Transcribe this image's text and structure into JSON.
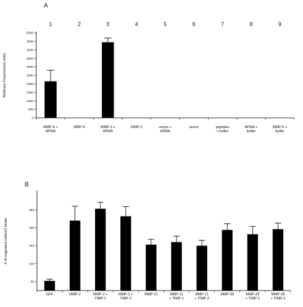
{
  "chart_data": [
    {
      "type": "bar",
      "panel_label": "A",
      "column_numbers": [
        "1",
        "2",
        "3",
        "4",
        "5",
        "6",
        "7",
        "8",
        "9"
      ],
      "categories": [
        [
          "MMP-9 +",
          "APMA"
        ],
        [
          "MMP-9"
        ],
        [
          "MMP-2 +",
          "APMA"
        ],
        [
          "MMP-2"
        ],
        [
          "vector +",
          "APMA"
        ],
        [
          "vector"
        ],
        [
          "peptides",
          "+ buffer"
        ],
        [
          "APMA +",
          "buffer"
        ],
        [
          "MMP-9 +",
          "buffer"
        ]
      ],
      "values": [
        2150,
        0,
        4450,
        0,
        0,
        0,
        0,
        0,
        0
      ],
      "errors": [
        650,
        0,
        250,
        0,
        0,
        0,
        0,
        0,
        0
      ],
      "ylabel": "Arbitrary Fluorescent units",
      "ylim": [
        0,
        5000
      ],
      "yticks": [
        0,
        500,
        1000,
        1500,
        2000,
        2500,
        3000,
        3500,
        4000,
        4500,
        5000
      ]
    },
    {
      "type": "bar",
      "panel_label": "B",
      "categories": [
        [
          "GFP"
        ],
        [
          "MMP-2"
        ],
        [
          "MMP-2 +",
          "TIMP-1"
        ],
        [
          "MMP-2 +",
          "TIMP-2"
        ],
        [
          "MMP-11"
        ],
        [
          "MMP-11",
          "+ TIMP-1"
        ],
        [
          "MMP-11",
          "+ TIMP-2"
        ],
        [
          "MMP-28"
        ],
        [
          "MMP-28",
          "+ TIMP-1"
        ],
        [
          "MMP-28",
          "+ TIMP-2"
        ]
      ],
      "values": [
        52,
        220,
        253,
        232,
        153,
        160,
        150,
        194,
        182,
        196
      ],
      "errors": [
        5,
        40,
        18,
        27,
        15,
        17,
        15,
        17,
        22,
        17
      ],
      "ylabel": "# of migrated cells/10 fields",
      "ylim": [
        25,
        300
      ],
      "yticks": [
        50,
        100,
        150,
        200,
        250
      ]
    }
  ]
}
